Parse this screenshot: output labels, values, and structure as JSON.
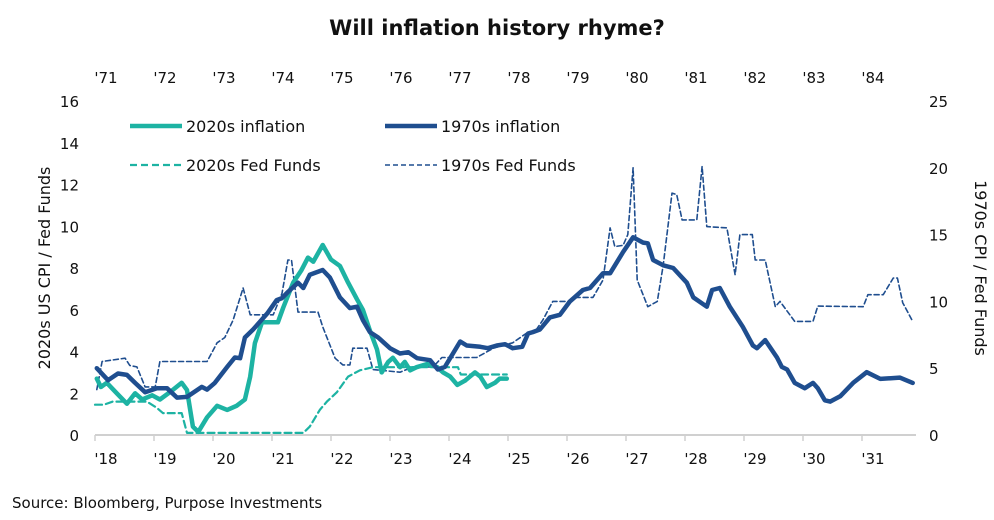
{
  "chart_data": {
    "type": "line",
    "title": "Will inflation history rhyme?",
    "source": "Source: Bloomberg, Purpose Investments",
    "x_bottom": {
      "range": [
        2018,
        2032
      ],
      "tick_labels": [
        "'18",
        "'19",
        "'20",
        "'21",
        "'22",
        "'23",
        "'24",
        "'25",
        "'26",
        "'27",
        "'28",
        "'29",
        "'30",
        "'31"
      ]
    },
    "x_top": {
      "range": [
        1971,
        1985
      ],
      "tick_labels": [
        "'71",
        "'72",
        "'73",
        "'74",
        "'75",
        "'76",
        "'77",
        "'78",
        "'79",
        "'80",
        "'81",
        "'82",
        "'83",
        "'84"
      ]
    },
    "y_left": {
      "label": "2020s US CPI / Fed Funds",
      "range": [
        0,
        16
      ],
      "tick_labels": [
        "0",
        "2",
        "4",
        "6",
        "8",
        "10",
        "12",
        "14",
        "16"
      ]
    },
    "y_right": {
      "label": "1970s CPI / Fed Funds",
      "range": [
        0,
        25
      ],
      "tick_labels": [
        "0",
        "5",
        "10",
        "15",
        "20",
        "25"
      ]
    },
    "grid": false,
    "legend": "top-left",
    "colors": {
      "teal": "#1db3a3",
      "navy": "#1f4e8f",
      "axis": "#d0d0d0"
    },
    "series": [
      {
        "name": "2020s inflation",
        "axis_x": "bottom",
        "axis_y": "left",
        "style": "solid-thick",
        "color": "#1db3a3",
        "points": [
          [
            2018.03,
            2.7
          ],
          [
            2018.1,
            2.3
          ],
          [
            2018.2,
            2.5
          ],
          [
            2018.37,
            2.0
          ],
          [
            2018.54,
            1.5
          ],
          [
            2018.68,
            2.0
          ],
          [
            2018.8,
            1.7
          ],
          [
            2018.97,
            1.9
          ],
          [
            2019.1,
            1.7
          ],
          [
            2019.27,
            2.05
          ],
          [
            2019.47,
            2.5
          ],
          [
            2019.56,
            2.15
          ],
          [
            2019.66,
            0.4
          ],
          [
            2019.75,
            0.15
          ],
          [
            2019.9,
            0.85
          ],
          [
            2020.07,
            1.4
          ],
          [
            2020.24,
            1.2
          ],
          [
            2020.4,
            1.4
          ],
          [
            2020.54,
            1.7
          ],
          [
            2020.63,
            2.8
          ],
          [
            2020.71,
            4.4
          ],
          [
            2020.83,
            5.4
          ],
          [
            2021.0,
            5.4
          ],
          [
            2021.1,
            5.4
          ],
          [
            2021.19,
            6.1
          ],
          [
            2021.36,
            7.3
          ],
          [
            2021.5,
            7.9
          ],
          [
            2021.61,
            8.5
          ],
          [
            2021.7,
            8.3
          ],
          [
            2021.86,
            9.1
          ],
          [
            2022.0,
            8.4
          ],
          [
            2022.15,
            8.1
          ],
          [
            2022.29,
            7.3
          ],
          [
            2022.44,
            6.5
          ],
          [
            2022.54,
            6.0
          ],
          [
            2022.66,
            5.0
          ],
          [
            2022.78,
            4.1
          ],
          [
            2022.86,
            3.0
          ],
          [
            2022.97,
            3.5
          ],
          [
            2023.05,
            3.7
          ],
          [
            2023.17,
            3.25
          ],
          [
            2023.25,
            3.5
          ],
          [
            2023.34,
            3.1
          ],
          [
            2023.45,
            3.25
          ],
          [
            2023.63,
            3.4
          ],
          [
            2023.8,
            3.25
          ],
          [
            2023.9,
            3.0
          ],
          [
            2024.02,
            2.8
          ],
          [
            2024.14,
            2.4
          ],
          [
            2024.27,
            2.6
          ],
          [
            2024.44,
            3.0
          ],
          [
            2024.53,
            2.8
          ],
          [
            2024.64,
            2.3
          ],
          [
            2024.78,
            2.5
          ],
          [
            2024.86,
            2.7
          ],
          [
            2024.98,
            2.7
          ]
        ]
      },
      {
        "name": "1970s inflation",
        "axis_x": "top",
        "axis_y": "right",
        "style": "solid-thick",
        "color": "#1f4e8f",
        "points": [
          [
            1971.03,
            5.0
          ],
          [
            1971.22,
            4.1
          ],
          [
            1971.39,
            4.6
          ],
          [
            1971.54,
            4.5
          ],
          [
            1971.68,
            3.9
          ],
          [
            1971.85,
            3.2
          ],
          [
            1972.05,
            3.5
          ],
          [
            1972.22,
            3.5
          ],
          [
            1972.39,
            2.8
          ],
          [
            1972.56,
            2.85
          ],
          [
            1972.81,
            3.6
          ],
          [
            1972.9,
            3.4
          ],
          [
            1973.03,
            3.9
          ],
          [
            1973.24,
            5.1
          ],
          [
            1973.37,
            5.8
          ],
          [
            1973.46,
            5.75
          ],
          [
            1973.54,
            7.3
          ],
          [
            1973.68,
            7.9
          ],
          [
            1973.92,
            9.1
          ],
          [
            1974.08,
            10.1
          ],
          [
            1974.17,
            10.25
          ],
          [
            1974.27,
            10.7
          ],
          [
            1974.44,
            11.4
          ],
          [
            1974.53,
            11.0
          ],
          [
            1974.64,
            12.0
          ],
          [
            1974.86,
            12.35
          ],
          [
            1974.98,
            11.8
          ],
          [
            1975.15,
            10.3
          ],
          [
            1975.32,
            9.5
          ],
          [
            1975.44,
            9.6
          ],
          [
            1975.54,
            8.6
          ],
          [
            1975.66,
            7.7
          ],
          [
            1975.8,
            7.3
          ],
          [
            1976.0,
            6.5
          ],
          [
            1976.17,
            6.1
          ],
          [
            1976.31,
            6.2
          ],
          [
            1976.46,
            5.75
          ],
          [
            1976.68,
            5.6
          ],
          [
            1976.81,
            4.9
          ],
          [
            1976.93,
            5.1
          ],
          [
            1977.19,
            7.0
          ],
          [
            1977.3,
            6.7
          ],
          [
            1977.53,
            6.6
          ],
          [
            1977.66,
            6.5
          ],
          [
            1977.81,
            6.7
          ],
          [
            1977.95,
            6.8
          ],
          [
            1978.08,
            6.5
          ],
          [
            1978.24,
            6.6
          ],
          [
            1978.34,
            7.6
          ],
          [
            1978.42,
            7.7
          ],
          [
            1978.54,
            7.9
          ],
          [
            1978.71,
            8.8
          ],
          [
            1978.88,
            9.0
          ],
          [
            1979.05,
            10.0
          ],
          [
            1979.27,
            10.85
          ],
          [
            1979.39,
            11.0
          ],
          [
            1979.61,
            12.1
          ],
          [
            1979.73,
            12.1
          ],
          [
            1979.95,
            13.7
          ],
          [
            1980.12,
            14.8
          ],
          [
            1980.29,
            14.4
          ],
          [
            1980.37,
            14.35
          ],
          [
            1980.46,
            13.1
          ],
          [
            1980.63,
            12.7
          ],
          [
            1980.8,
            12.5
          ],
          [
            1981.03,
            11.4
          ],
          [
            1981.14,
            10.3
          ],
          [
            1981.37,
            9.6
          ],
          [
            1981.46,
            10.85
          ],
          [
            1981.59,
            11.0
          ],
          [
            1981.76,
            9.6
          ],
          [
            1981.98,
            8.1
          ],
          [
            1982.15,
            6.7
          ],
          [
            1982.22,
            6.5
          ],
          [
            1982.36,
            7.1
          ],
          [
            1982.56,
            5.8
          ],
          [
            1982.64,
            5.1
          ],
          [
            1982.73,
            4.9
          ],
          [
            1982.86,
            3.9
          ],
          [
            1983.03,
            3.5
          ],
          [
            1983.17,
            3.9
          ],
          [
            1983.25,
            3.5
          ],
          [
            1983.37,
            2.6
          ],
          [
            1983.46,
            2.5
          ],
          [
            1983.63,
            2.9
          ],
          [
            1983.85,
            3.9
          ],
          [
            1984.08,
            4.7
          ],
          [
            1984.31,
            4.2
          ],
          [
            1984.64,
            4.3
          ],
          [
            1984.86,
            3.9
          ]
        ]
      },
      {
        "name": "2020s Fed Funds",
        "axis_x": "bottom",
        "axis_y": "left",
        "style": "dashed-thick",
        "color": "#1db3a3",
        "points": [
          [
            2018.0,
            1.45
          ],
          [
            2018.15,
            1.45
          ],
          [
            2018.3,
            1.6
          ],
          [
            2018.88,
            1.6
          ],
          [
            2019.05,
            1.3
          ],
          [
            2019.15,
            1.05
          ],
          [
            2019.47,
            1.05
          ],
          [
            2019.56,
            0.1
          ],
          [
            2021.53,
            0.1
          ],
          [
            2021.64,
            0.4
          ],
          [
            2021.81,
            1.2
          ],
          [
            2021.93,
            1.6
          ],
          [
            2022.1,
            2.05
          ],
          [
            2022.29,
            2.8
          ],
          [
            2022.49,
            3.1
          ],
          [
            2022.71,
            3.25
          ],
          [
            2024.15,
            3.25
          ],
          [
            2024.2,
            2.9
          ],
          [
            2024.98,
            2.9
          ]
        ]
      },
      {
        "name": "1970s Fed Funds",
        "axis_x": "top",
        "axis_y": "right",
        "style": "dashed-thin",
        "color": "#1f4e8f",
        "points": [
          [
            1971.03,
            3.4
          ],
          [
            1971.12,
            5.5
          ],
          [
            1971.51,
            5.75
          ],
          [
            1971.59,
            5.2
          ],
          [
            1971.71,
            5.1
          ],
          [
            1971.85,
            3.6
          ],
          [
            1972.02,
            3.6
          ],
          [
            1972.1,
            5.5
          ],
          [
            1972.9,
            5.5
          ],
          [
            1973.07,
            6.9
          ],
          [
            1973.2,
            7.3
          ],
          [
            1973.34,
            8.6
          ],
          [
            1973.51,
            11.0
          ],
          [
            1973.63,
            9.0
          ],
          [
            1974.02,
            9.0
          ],
          [
            1974.17,
            10.6
          ],
          [
            1974.27,
            13.1
          ],
          [
            1974.33,
            13.1
          ],
          [
            1974.44,
            9.2
          ],
          [
            1974.78,
            9.2
          ],
          [
            1974.86,
            8.1
          ],
          [
            1975.07,
            5.75
          ],
          [
            1975.2,
            5.25
          ],
          [
            1975.32,
            5.25
          ],
          [
            1975.37,
            6.5
          ],
          [
            1975.61,
            6.5
          ],
          [
            1975.71,
            4.9
          ],
          [
            1976.17,
            4.7
          ],
          [
            1976.39,
            5.1
          ],
          [
            1976.73,
            5.1
          ],
          [
            1976.88,
            5.8
          ],
          [
            1977.47,
            5.8
          ],
          [
            1977.75,
            6.5
          ],
          [
            1978.08,
            6.9
          ],
          [
            1978.34,
            7.7
          ],
          [
            1978.45,
            7.7
          ],
          [
            1978.59,
            8.6
          ],
          [
            1978.76,
            10.0
          ],
          [
            1979.02,
            10.0
          ],
          [
            1979.17,
            10.3
          ],
          [
            1979.44,
            10.3
          ],
          [
            1979.61,
            11.6
          ],
          [
            1979.73,
            15.5
          ],
          [
            1979.81,
            14.1
          ],
          [
            1979.95,
            14.2
          ],
          [
            1980.03,
            15.0
          ],
          [
            1980.12,
            20.0
          ],
          [
            1980.19,
            11.6
          ],
          [
            1980.37,
            9.6
          ],
          [
            1980.53,
            10.0
          ],
          [
            1980.63,
            12.7
          ],
          [
            1980.78,
            18.1
          ],
          [
            1980.86,
            18.0
          ],
          [
            1980.95,
            16.1
          ],
          [
            1981.2,
            16.1
          ],
          [
            1981.29,
            20.1
          ],
          [
            1981.37,
            15.6
          ],
          [
            1981.71,
            15.5
          ],
          [
            1981.85,
            12.0
          ],
          [
            1981.93,
            15.0
          ],
          [
            1982.14,
            15.0
          ],
          [
            1982.19,
            13.1
          ],
          [
            1982.36,
            13.1
          ],
          [
            1982.53,
            9.6
          ],
          [
            1982.61,
            10.0
          ],
          [
            1982.86,
            8.5
          ],
          [
            1983.17,
            8.5
          ],
          [
            1983.25,
            9.65
          ],
          [
            1984.02,
            9.6
          ],
          [
            1984.1,
            10.5
          ],
          [
            1984.36,
            10.5
          ],
          [
            1984.53,
            11.75
          ],
          [
            1984.6,
            11.75
          ],
          [
            1984.69,
            9.9
          ],
          [
            1984.86,
            8.5
          ]
        ]
      }
    ]
  }
}
